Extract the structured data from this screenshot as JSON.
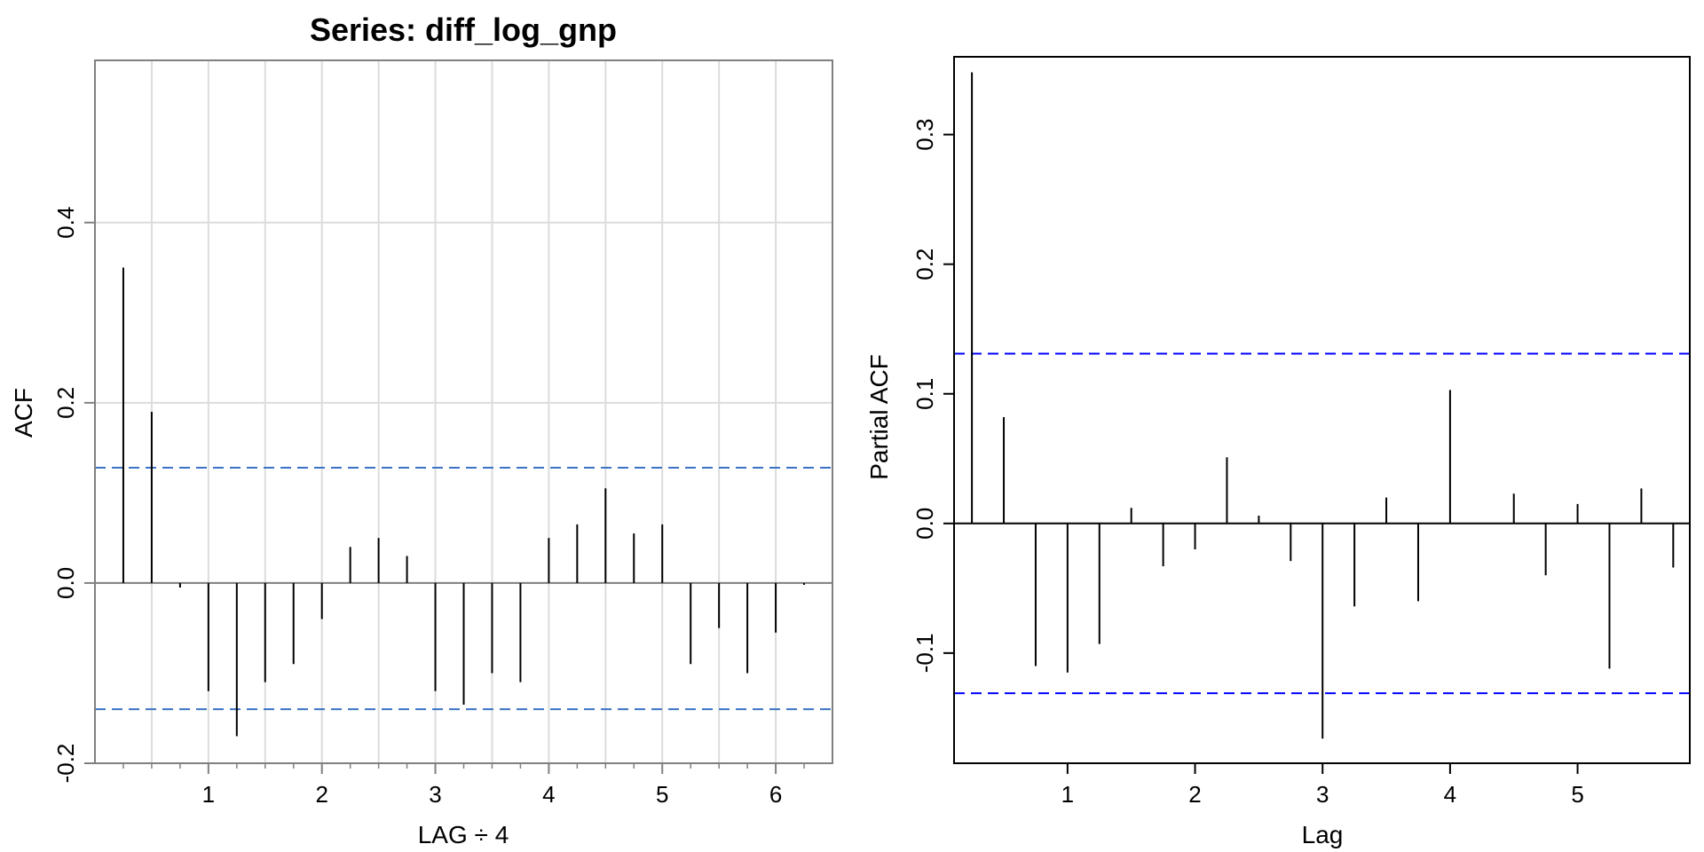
{
  "chart_data": [
    {
      "type": "bar",
      "subtype": "acf-lollipop",
      "title": "Series:  diff_log_gnp",
      "xlabel": "LAG ÷ 4",
      "ylabel": "ACF",
      "xlim": [
        0,
        6.5
      ],
      "ylim": [
        -0.2,
        0.58
      ],
      "grid": true,
      "x_ticks": [
        1,
        2,
        3,
        4,
        5,
        6
      ],
      "y_ticks": [
        -0.2,
        0.0,
        0.2,
        0.4
      ],
      "x_tick_labels": [
        "1",
        "2",
        "3",
        "4",
        "5",
        "6"
      ],
      "y_tick_labels": [
        "-0.2",
        "0.0",
        "0.2",
        "0.4"
      ],
      "x": [
        0.25,
        0.5,
        0.75,
        1.0,
        1.25,
        1.5,
        1.75,
        2.0,
        2.25,
        2.5,
        2.75,
        3.0,
        3.25,
        3.5,
        3.75,
        4.0,
        4.25,
        4.5,
        4.75,
        5.0,
        5.25,
        5.5,
        5.75,
        6.0,
        6.25
      ],
      "values": [
        0.35,
        0.19,
        -0.005,
        -0.12,
        -0.17,
        -0.11,
        -0.09,
        -0.04,
        0.04,
        0.05,
        0.03,
        -0.12,
        -0.135,
        -0.1,
        -0.11,
        0.05,
        0.065,
        0.105,
        0.055,
        0.065,
        -0.09,
        -0.05,
        -0.1,
        -0.055,
        -0.002
      ],
      "conf_upper": 0.128,
      "conf_lower": -0.14,
      "colors": {
        "conf": "#3a72c6",
        "grid": "#dcdcdc",
        "frame": "#808080",
        "bars": "#000000"
      }
    },
    {
      "type": "bar",
      "subtype": "pacf-lollipop",
      "title": "",
      "xlabel": "Lag",
      "ylabel": "Partial ACF",
      "xlim": [
        0.11,
        5.88
      ],
      "ylim": [
        -0.185,
        0.36
      ],
      "grid": false,
      "x_ticks": [
        1,
        2,
        3,
        4,
        5
      ],
      "y_ticks": [
        -0.1,
        0.0,
        0.1,
        0.2,
        0.3
      ],
      "x_tick_labels": [
        "1",
        "2",
        "3",
        "4",
        "5"
      ],
      "y_tick_labels": [
        "-0.1",
        "0.0",
        "0.1",
        "0.2",
        "0.3"
      ],
      "x": [
        0.25,
        0.5,
        0.75,
        1.0,
        1.25,
        1.5,
        1.75,
        2.0,
        2.25,
        2.5,
        2.75,
        3.0,
        3.25,
        3.5,
        3.75,
        4.0,
        4.25,
        4.5,
        4.75,
        5.0,
        5.25,
        5.5,
        5.75
      ],
      "values": [
        0.348,
        0.082,
        -0.11,
        -0.115,
        -0.093,
        0.012,
        -0.033,
        -0.02,
        0.051,
        0.006,
        -0.029,
        -0.166,
        -0.064,
        0.02,
        -0.06,
        0.103,
        0.0,
        0.023,
        -0.04,
        0.015,
        -0.112,
        0.027,
        -0.034
      ],
      "conf_upper": 0.131,
      "conf_lower": -0.131,
      "colors": {
        "conf": "#0000ff",
        "frame": "#000000",
        "bars": "#000000"
      }
    }
  ]
}
